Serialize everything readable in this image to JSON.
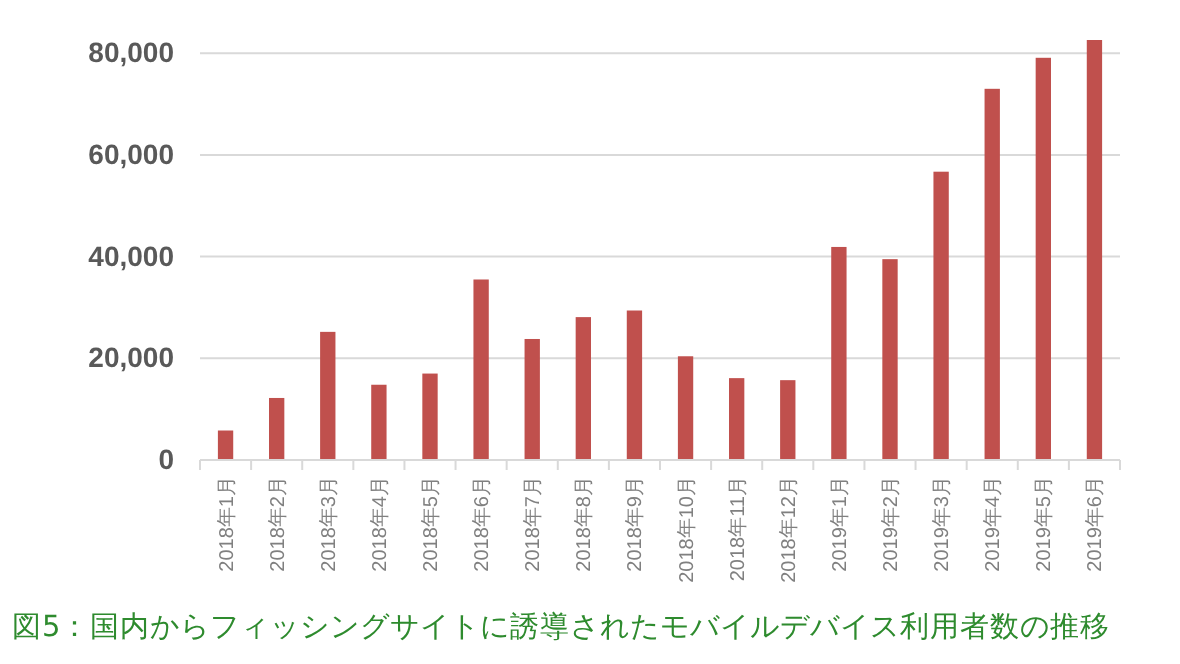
{
  "chart_data": {
    "type": "bar",
    "categories": [
      "2018年1月",
      "2018年2月",
      "2018年3月",
      "2018年4月",
      "2018年5月",
      "2018年6月",
      "2018年7月",
      "2018年8月",
      "2018年9月",
      "2018年10月",
      "2018年11月",
      "2018年12月",
      "2019年1月",
      "2019年2月",
      "2019年3月",
      "2019年4月",
      "2019年5月",
      "2019年6月"
    ],
    "values": [
      5800,
      12200,
      25200,
      14800,
      17000,
      35500,
      23800,
      28100,
      29400,
      20400,
      16100,
      15700,
      41900,
      39500,
      56700,
      73000,
      79100,
      82600
    ],
    "color": "#c0504d",
    "ylim": [
      0,
      82600
    ],
    "yticks": [
      0,
      {
        "value": 20000,
        "label": "20,000"
      },
      {
        "value": 40000,
        "label": "40,000"
      },
      {
        "value": 60000,
        "label": "60,000"
      },
      {
        "value": 80000,
        "label": "80,000"
      }
    ],
    "grid": "y",
    "annotations": [
      "図5：国内からフィッシングサイトに誘導されたモバイルデバイス利用者数の推移"
    ]
  }
}
